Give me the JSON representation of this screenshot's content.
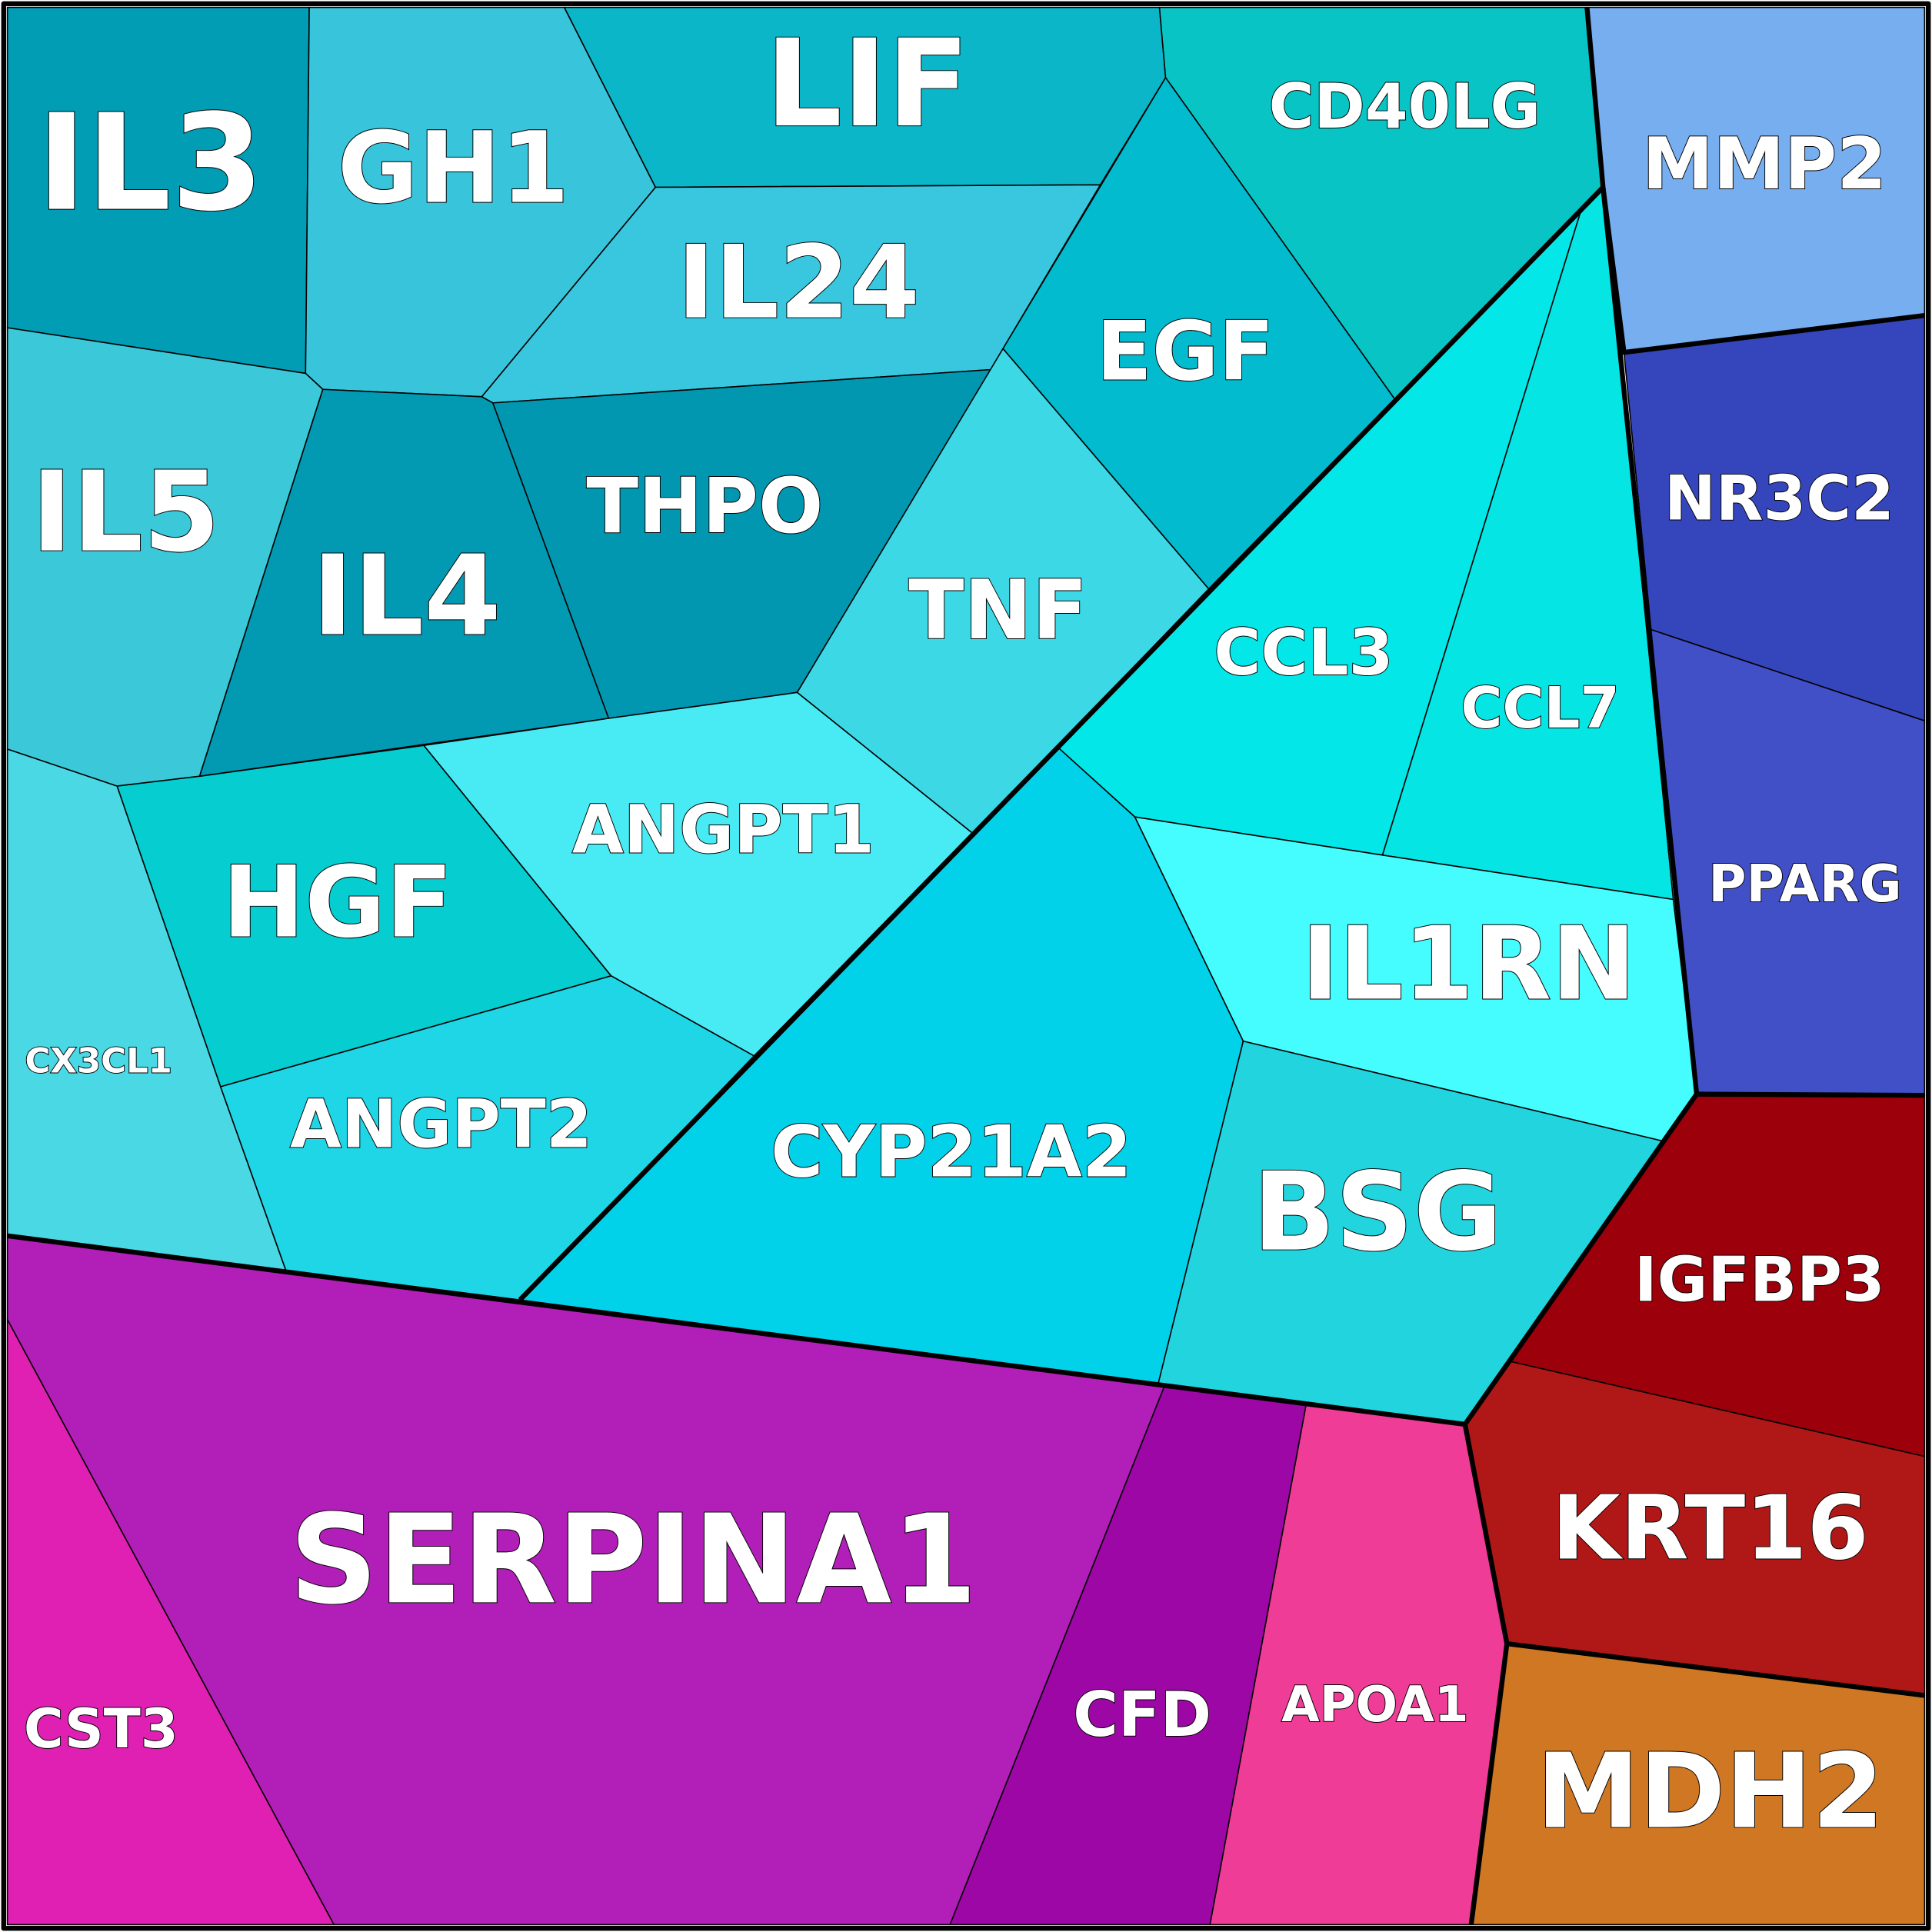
{
  "cells": [
    {
      "label": "IL3"
    },
    {
      "label": "GH1"
    },
    {
      "label": "LIF"
    },
    {
      "label": "CD40LG"
    },
    {
      "label": "MMP2"
    },
    {
      "label": "IL24"
    },
    {
      "label": "EGF"
    },
    {
      "label": "IL5"
    },
    {
      "label": "IL4"
    },
    {
      "label": "THPO"
    },
    {
      "label": "TNF"
    },
    {
      "label": "CCL3"
    },
    {
      "label": "CCL7"
    },
    {
      "label": "NR3C2"
    },
    {
      "label": "PPARG"
    },
    {
      "label": "IL1RN"
    },
    {
      "label": "HGF"
    },
    {
      "label": "ANGPT1"
    },
    {
      "label": "CX3CL1"
    },
    {
      "label": "ANGPT2"
    },
    {
      "label": "CYP21A2"
    },
    {
      "label": "BSG"
    },
    {
      "label": "IGFBP3"
    },
    {
      "label": "KRT16"
    },
    {
      "label": "MDH2"
    },
    {
      "label": "APOA1"
    },
    {
      "label": "CFD"
    },
    {
      "label": "SERPINA1"
    },
    {
      "label": "CST3"
    }
  ]
}
